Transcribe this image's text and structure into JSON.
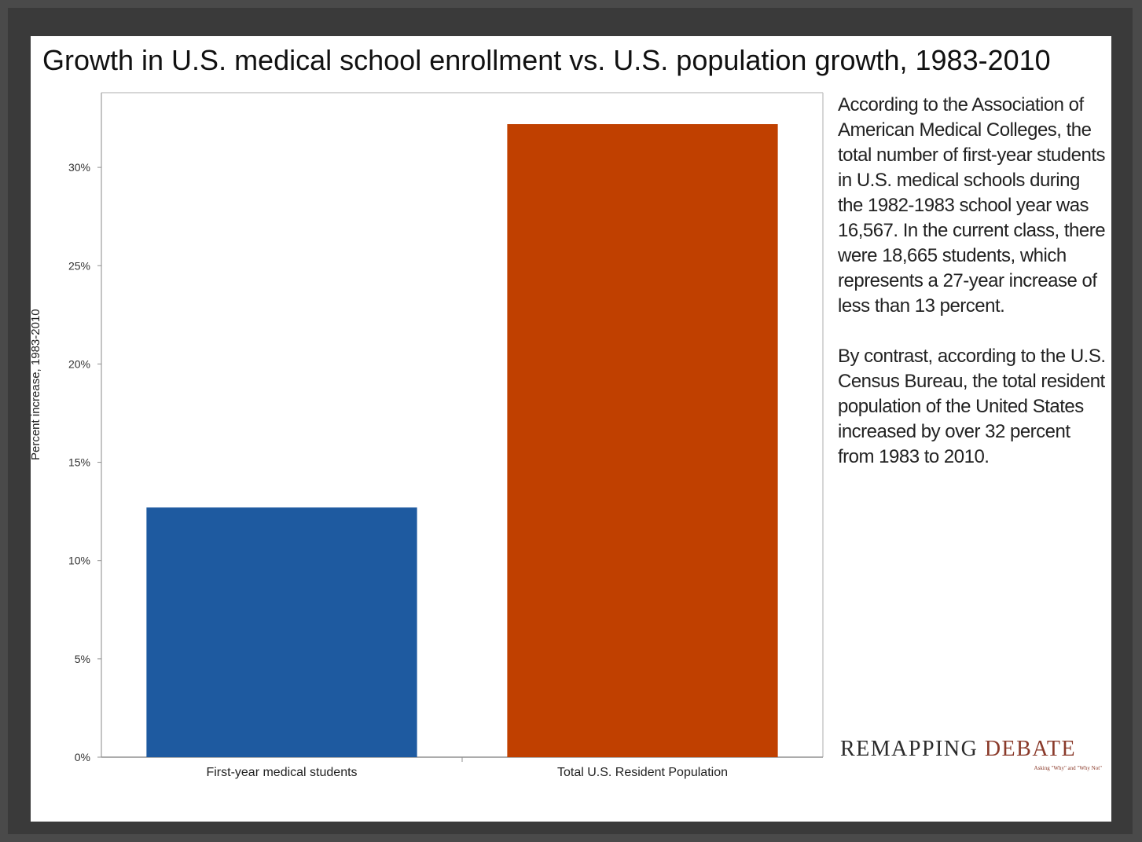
{
  "chart_data": {
    "type": "bar",
    "title": "Growth in U.S. medical school enrollment vs. U.S. population growth, 1983-2010",
    "ylabel": "Percent increase, 1983-2010",
    "xlabel": "",
    "categories": [
      "First-year medical students",
      "Total U.S. Resident Population"
    ],
    "values": [
      12.7,
      32.2
    ],
    "ylim": [
      0,
      33.8
    ],
    "yticks": [
      0,
      5,
      10,
      15,
      20,
      25,
      30
    ],
    "ytick_labels": [
      "0%",
      "5%",
      "10%",
      "15%",
      "20%",
      "25%",
      "30%"
    ],
    "colors": [
      "#1e5aa0",
      "#c04000"
    ],
    "grid": false,
    "legend": "none"
  },
  "side_text": {
    "paragraph_1": "According to the Association of American Medical Colleges, the total number of first-year students in U.S. medical schools during the 1982-1983 school year was 16,567. In the current class, there were 18,665 students, which represents a 27-year increase of less than 13 percent.",
    "paragraph_2": "By contrast, according to the U.S. Census Bureau, the total resident population of the United States increased by over 32 percent from 1983 to 2010."
  },
  "logo": {
    "word_1": "REMAPPING",
    "word_2": "DEBATE",
    "tagline": "Asking \"Why\" and \"Why Not\""
  }
}
